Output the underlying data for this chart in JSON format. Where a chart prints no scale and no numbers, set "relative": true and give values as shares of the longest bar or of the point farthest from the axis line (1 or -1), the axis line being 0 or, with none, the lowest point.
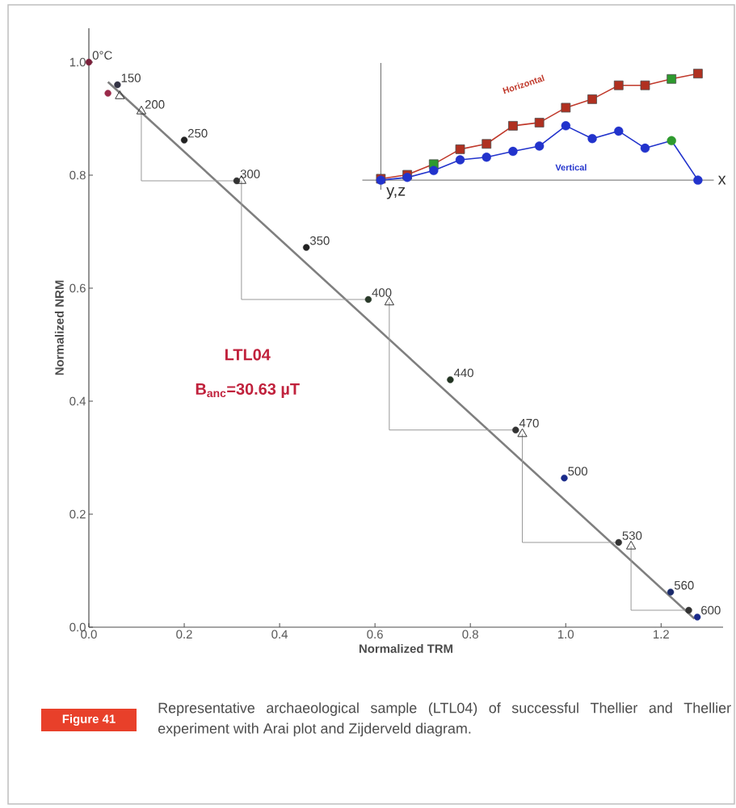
{
  "chart_data": [
    {
      "type": "scatter",
      "xlabel": "Normalized TRM",
      "ylabel": "Normalized NRM",
      "xlim": [
        0,
        1.33
      ],
      "ylim": [
        0,
        1.06
      ],
      "xticks": [
        {
          "value": 0,
          "label": "0.0"
        },
        {
          "value": 0.2,
          "label": "0.2"
        },
        {
          "value": 0.4,
          "label": "0.4"
        },
        {
          "value": 0.6,
          "label": "0.6"
        },
        {
          "value": 0.8,
          "label": "0.8"
        },
        {
          "value": 1.0,
          "label": "1.0"
        },
        {
          "value": 1.2,
          "label": "1.2"
        }
      ],
      "yticks": [
        {
          "value": 0,
          "label": "0.0"
        },
        {
          "value": 0.2,
          "label": "0.2"
        },
        {
          "value": 0.4,
          "label": "0.4"
        },
        {
          "value": 0.6,
          "label": "0.6"
        },
        {
          "value": 0.8,
          "label": "0.8"
        },
        {
          "value": 1.0,
          "label": "1.0"
        }
      ],
      "series": [
        {
          "type": "line",
          "color": "#7f7f7f",
          "x": [
            0.04,
            1.27
          ],
          "values": [
            0.965,
            0.015
          ]
        },
        {
          "type": "line",
          "color": "#999999",
          "x": [
            0.11,
            0.11,
            0.31,
            null,
            0.32,
            0.32,
            0.586,
            null,
            0.63,
            0.63,
            0.895,
            null,
            0.909,
            0.909,
            1.111,
            null,
            1.137,
            1.137,
            1.258
          ],
          "values": [
            0.913,
            0.79,
            0.79,
            null,
            0.79,
            0.58,
            0.58,
            null,
            0.575,
            0.349,
            0.349,
            null,
            0.342,
            0.15,
            0.15,
            null,
            0.143,
            0.03,
            0.03
          ]
        },
        {
          "type": "scatter",
          "marker": "circle",
          "x": [
            0,
            0.04,
            0.06,
            0.2,
            0.31,
            0.456,
            0.586,
            0.758,
            0.895,
            0.997,
            1.111,
            1.22,
            1.258,
            1.276
          ],
          "values": [
            1.0,
            0.945,
            0.96,
            0.862,
            0.79,
            0.672,
            0.58,
            0.438,
            0.349,
            0.264,
            0.15,
            0.062,
            0.03,
            0.018
          ],
          "colors": [
            "#7a1f3a",
            "#9a2a4a",
            "#333344",
            "#222222",
            "#333333",
            "#222222",
            "#2a3a2a",
            "#223322",
            "#333333",
            "#1a2a8a",
            "#333333",
            "#1a2a6a",
            "#333333",
            "#1a2a8a"
          ]
        },
        {
          "type": "scatter",
          "marker": "triangle",
          "color": "#333333",
          "x": [
            0.065,
            0.11,
            0.32,
            0.63,
            0.909,
            1.137
          ],
          "values": [
            0.94,
            0.913,
            0.79,
            0.575,
            0.342,
            0.143
          ]
        }
      ],
      "annotations": [
        {
          "text": "0°C",
          "x": 0,
          "y": 1.0
        },
        {
          "text": "150",
          "x": 0.06,
          "y": 0.96
        },
        {
          "text": "200",
          "x": 0.11,
          "y": 0.913
        },
        {
          "text": "250",
          "x": 0.2,
          "y": 0.862
        },
        {
          "text": "300",
          "x": 0.31,
          "y": 0.79
        },
        {
          "text": "350",
          "x": 0.456,
          "y": 0.672
        },
        {
          "text": "400",
          "x": 0.586,
          "y": 0.58
        },
        {
          "text": "440",
          "x": 0.758,
          "y": 0.438
        },
        {
          "text": "470",
          "x": 0.895,
          "y": 0.349
        },
        {
          "text": "500",
          "x": 0.997,
          "y": 0.264
        },
        {
          "text": "530",
          "x": 1.111,
          "y": 0.15
        },
        {
          "text": "560",
          "x": 1.22,
          "y": 0.062
        },
        {
          "text": "600",
          "x": 1.276,
          "y": 0.018
        },
        "LTL04",
        "B$_{anc}$=30.63 µT",
        "Figure 41",
        "Representative archaeological sample (LTL04) of successful Thellier and Thellier experiment with Arai plot and Zijderveld diagram."
      ]
    },
    {
      "type": "line",
      "relative": true,
      "xlabel": "x",
      "annotations": [
        "y,z"
      ],
      "categories": [
        null,
        null,
        null,
        null,
        null,
        null,
        null,
        null,
        null,
        null,
        null,
        null,
        null
      ],
      "series": [
        {
          "name": "Horizontal",
          "color": "#c0392b",
          "marker": "square",
          "values": [
            0.013,
            0.05,
            0.15,
            0.29,
            0.34,
            0.51,
            0.54,
            0.68,
            0.76,
            0.89,
            0.89,
            0.95,
            1.0
          ],
          "colors": [
            "#b03020",
            "#b03020",
            "#2e9a2e",
            "#b03020",
            "#b03020",
            "#b03020",
            "#b03020",
            "#b03020",
            "#b03020",
            "#b03020",
            "#b03020",
            "#2e9a2e",
            "#b03020"
          ]
        },
        {
          "name": "Vertical",
          "color": "#2233cc",
          "marker": "circle",
          "values": [
            0,
            0.025,
            0.09,
            0.19,
            0.215,
            0.27,
            0.32,
            0.51,
            0.39,
            0.46,
            0.3,
            0.37,
            0
          ],
          "colors": [
            "#2233cc",
            "#2233cc",
            "#2233cc",
            "#2233cc",
            "#2233cc",
            "#2233cc",
            "#2233cc",
            "#2233cc",
            "#2233cc",
            "#2233cc",
            "#2233cc",
            "#2e9a2e",
            "#2233cc"
          ]
        }
      ]
    }
  ]
}
